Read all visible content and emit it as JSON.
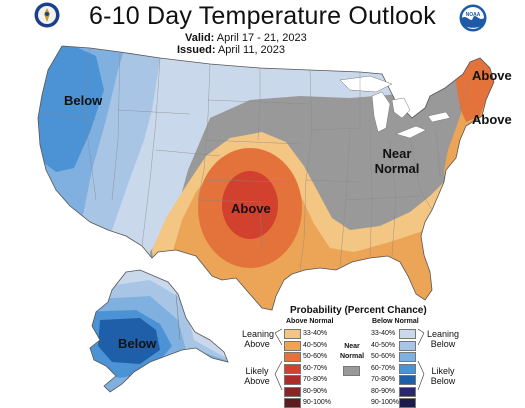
{
  "header": {
    "title": "6-10 Day Temperature Outlook",
    "valid_label": "Valid:",
    "valid_dates": "April 17 - 21, 2023",
    "issued_label": "Issued:",
    "issued_date": "April 11, 2023",
    "noaa_text": "NOAA"
  },
  "map_labels": {
    "west": "Below",
    "plains": "Above",
    "northeast_top": "Above",
    "northeast_bottom": "Above",
    "midwest_line1": "Near",
    "midwest_line2": "Normal",
    "alaska": "Below"
  },
  "legend": {
    "title": "Probability (Percent Chance)",
    "above_header": "Above Normal",
    "below_header": "Below Normal",
    "leaning_above": [
      "Leaning",
      "Above"
    ],
    "likely_above": [
      "Likely",
      "Above"
    ],
    "leaning_below": [
      "Leaning",
      "Below"
    ],
    "likely_below": [
      "Likely",
      "Below"
    ],
    "near_normal": [
      "Near",
      "Normal"
    ],
    "levels": [
      "33-40%",
      "40-50%",
      "50-60%",
      "60-70%",
      "70-80%",
      "80-90%",
      "90-100%"
    ],
    "above_colors": [
      "#f3c684",
      "#eca456",
      "#e3733a",
      "#d2402e",
      "#b02a2a",
      "#8a2425",
      "#5e1c1d"
    ],
    "below_colors": [
      "#cad8ec",
      "#a8c5e6",
      "#7fb0e0",
      "#4c93d5",
      "#1f5fa9",
      "#29286e",
      "#1b1a4a"
    ],
    "near_normal_color": "#999999"
  }
}
